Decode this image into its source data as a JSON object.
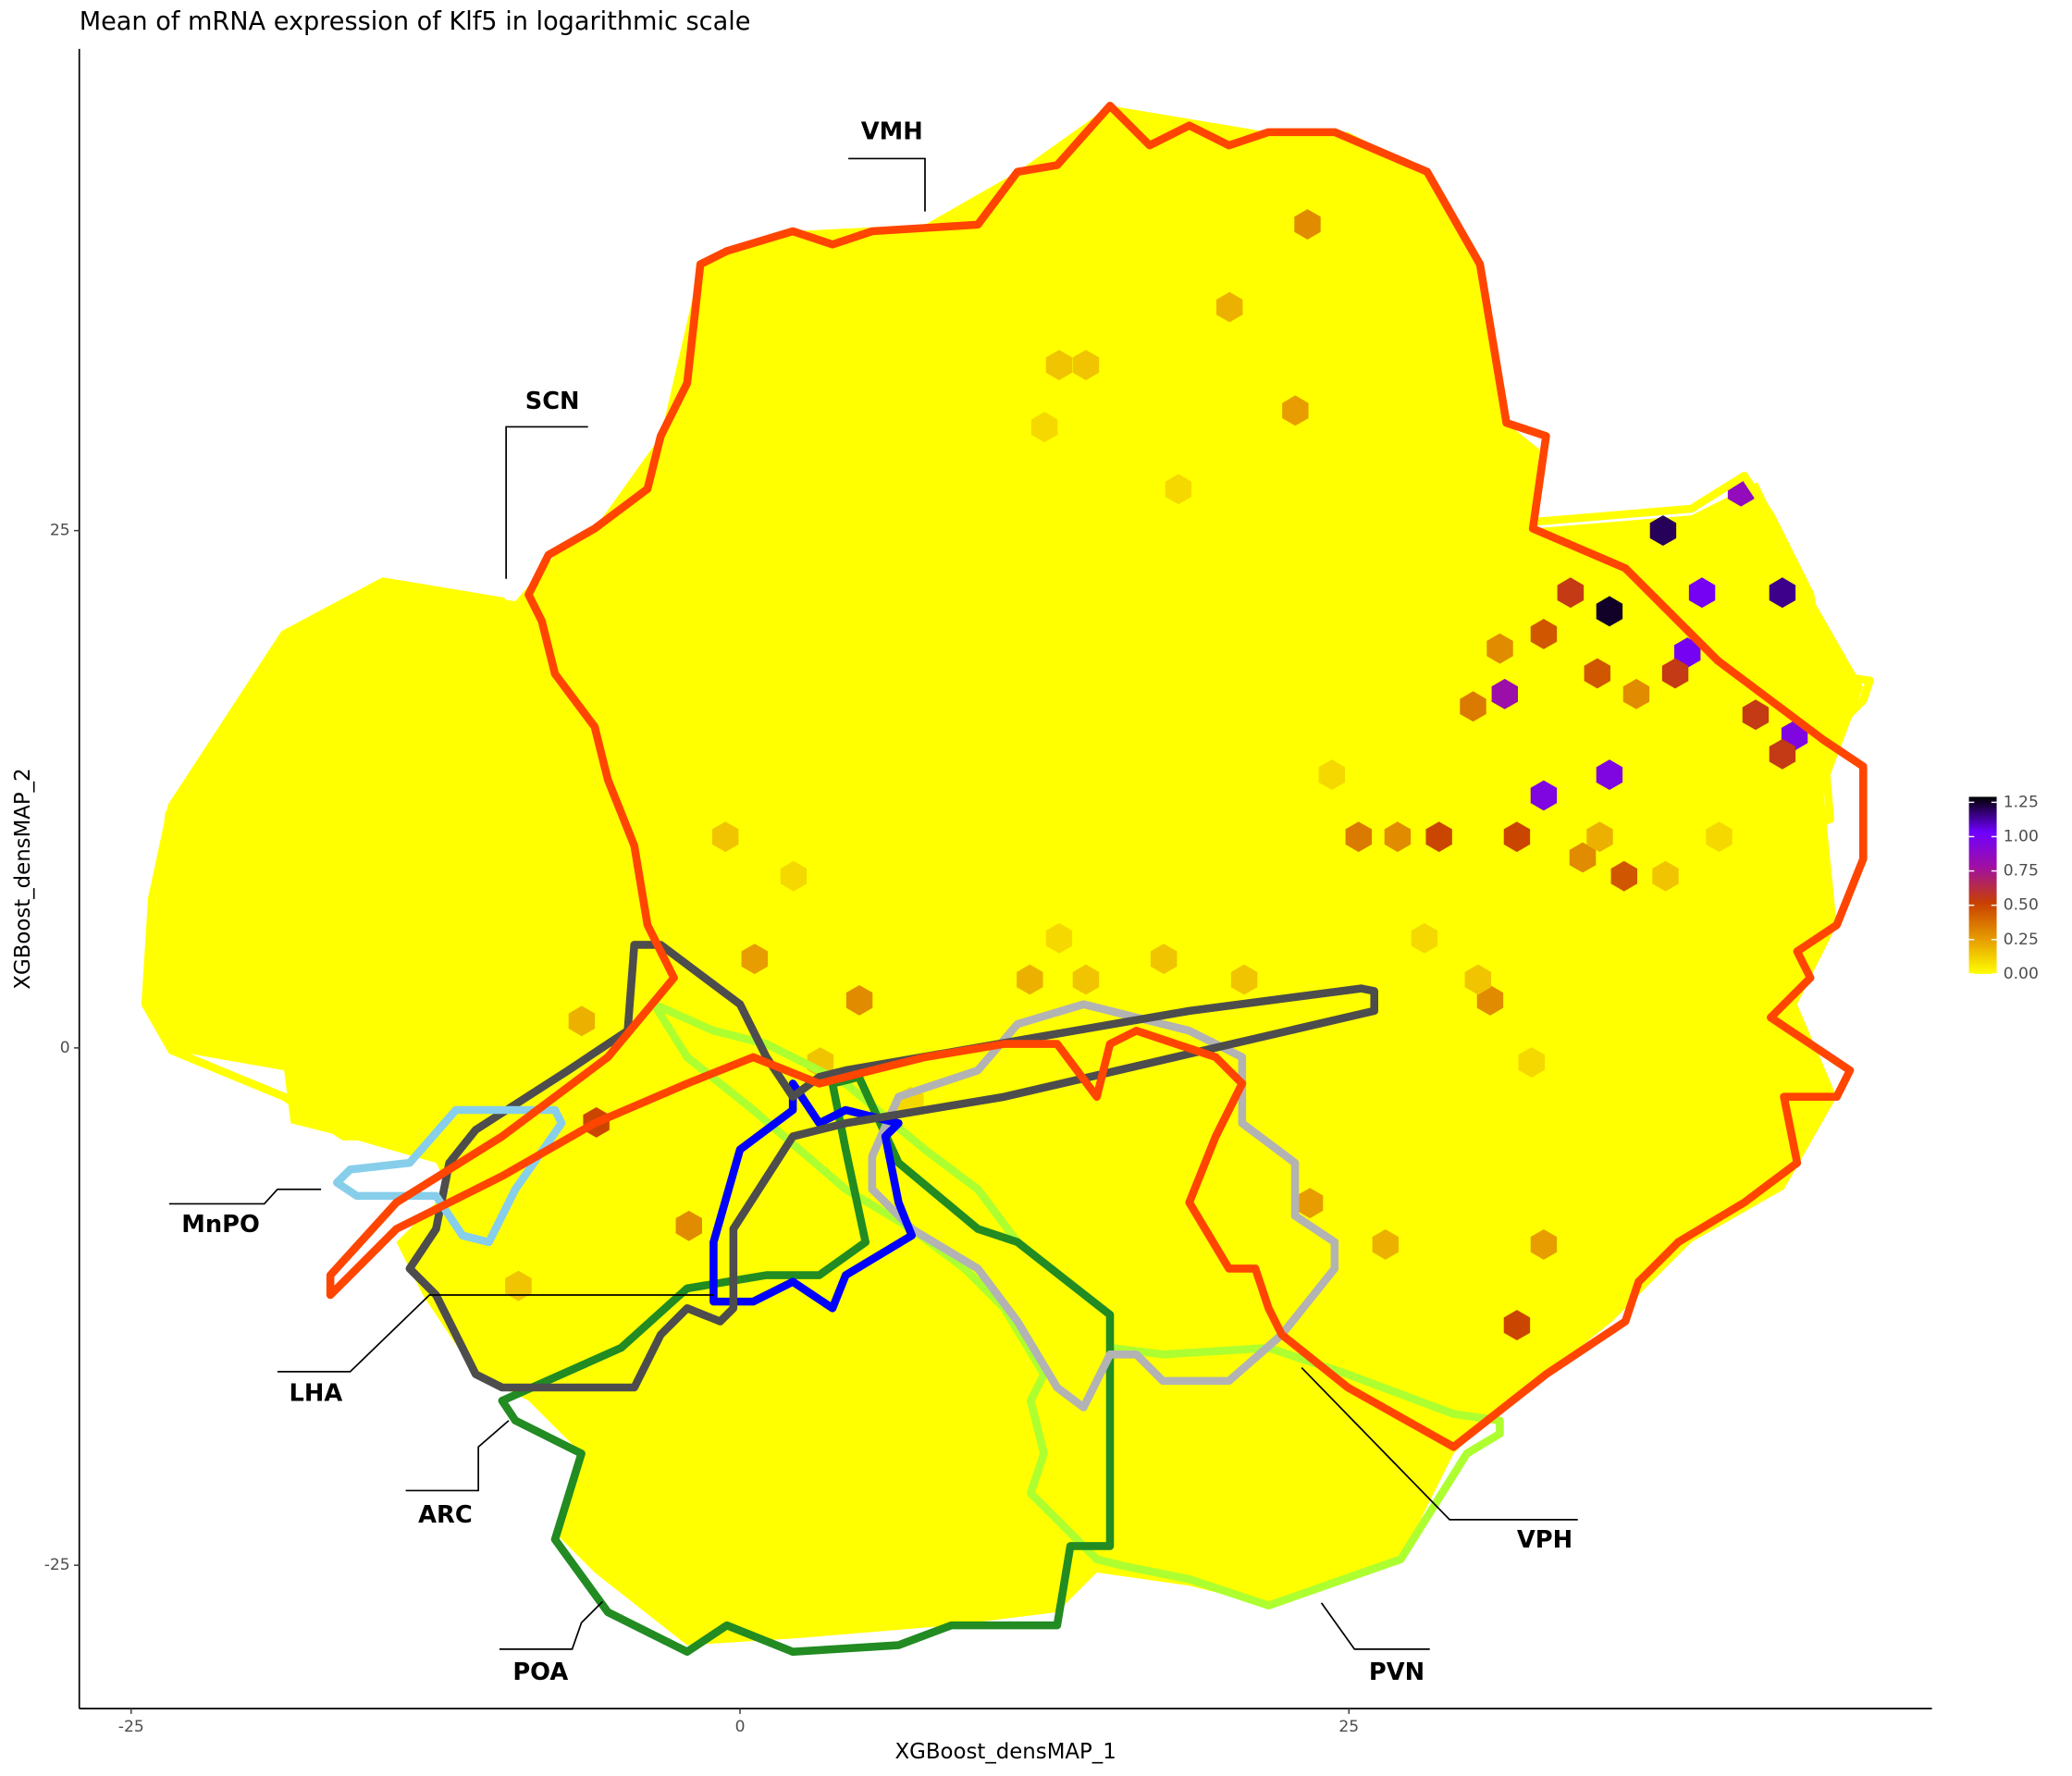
{
  "chart_data": {
    "type": "hexbin",
    "title": "Mean of mRNA expression of Klf5 in logarithmic scale",
    "x_label": "XGBoost_densMAP_1",
    "y_label": "XGBoost_densMAP_2",
    "xlim": [
      -27.13,
      48.94
    ],
    "ylim": [
      -31.93,
      48.28
    ],
    "xticks": [
      -25,
      0,
      25
    ],
    "yticks": [
      -25,
      0,
      25
    ],
    "clim": [
      0,
      1.29
    ],
    "cticks": [
      {
        "value": 0,
        "label": "0.00"
      },
      {
        "value": 0.25,
        "label": "0.25"
      },
      {
        "value": 0.5,
        "label": "0.50"
      },
      {
        "value": 0.75,
        "label": "0.75"
      },
      {
        "value": 1,
        "label": "1.00"
      },
      {
        "value": 1.25,
        "label": "1.25"
      }
    ],
    "colors": [
      "#ffff00",
      "#e69a00",
      "#c84000",
      "#a010a0",
      "#7000ff",
      "#000000"
    ],
    "regions": [
      "VMH",
      "SCN",
      "MnPO",
      "LHA",
      "ARC",
      "POA",
      "VPH",
      "PVN"
    ],
    "points": [
      {
        "x": 35.7,
        "y": 21.1,
        "value": 1.25
      },
      {
        "x": 37.9,
        "y": 25.0,
        "value": 1.2
      },
      {
        "x": 42.8,
        "y": 22.0,
        "value": 1.15
      },
      {
        "x": 41.1,
        "y": 26.9,
        "value": 0.85
      },
      {
        "x": 39.5,
        "y": 22.0,
        "value": 1.0
      },
      {
        "x": 38.9,
        "y": 19.1,
        "value": 1.0
      },
      {
        "x": 31.4,
        "y": 17.1,
        "value": 0.8
      },
      {
        "x": 33.0,
        "y": 12.2,
        "value": 0.95
      },
      {
        "x": 35.7,
        "y": 13.2,
        "value": 0.95
      },
      {
        "x": 43.3,
        "y": 15.1,
        "value": 0.95
      },
      {
        "x": 34.1,
        "y": 22.0,
        "value": 0.55
      },
      {
        "x": 41.7,
        "y": 16.1,
        "value": 0.55
      },
      {
        "x": 42.8,
        "y": 14.2,
        "value": 0.55
      },
      {
        "x": 38.4,
        "y": 18.1,
        "value": 0.55
      },
      {
        "x": 28.7,
        "y": 10.2,
        "value": 0.5
      },
      {
        "x": 31.9,
        "y": 10.2,
        "value": 0.5
      },
      {
        "x": 36.3,
        "y": 8.3,
        "value": 0.45
      },
      {
        "x": 33.0,
        "y": 20.0,
        "value": 0.45
      },
      {
        "x": 35.2,
        "y": 18.1,
        "value": 0.45
      },
      {
        "x": 31.9,
        "y": -13.4,
        "value": 0.5
      },
      {
        "x": -5.9,
        "y": -3.6,
        "value": 0.5
      },
      {
        "x": 23.3,
        "y": 39.8,
        "value": 0.3
      },
      {
        "x": 22.8,
        "y": 30.8,
        "value": 0.25
      },
      {
        "x": 20.1,
        "y": 35.8,
        "value": 0.2
      },
      {
        "x": 4.9,
        "y": 2.3,
        "value": 0.3
      },
      {
        "x": 0.6,
        "y": 4.3,
        "value": 0.25
      },
      {
        "x": -2.1,
        "y": -8.6,
        "value": 0.3
      },
      {
        "x": 25.4,
        "y": 10.2,
        "value": 0.35
      },
      {
        "x": 30.8,
        "y": 2.3,
        "value": 0.3
      },
      {
        "x": 33.0,
        "y": -9.5,
        "value": 0.25
      },
      {
        "x": 30.1,
        "y": 16.5,
        "value": 0.35
      },
      {
        "x": 31.2,
        "y": 19.3,
        "value": 0.3
      },
      {
        "x": 34.6,
        "y": 9.2,
        "value": 0.3
      },
      {
        "x": 36.8,
        "y": 17.1,
        "value": 0.3
      },
      {
        "x": 27.0,
        "y": 10.2,
        "value": 0.3
      },
      {
        "x": 23.4,
        "y": -7.5,
        "value": 0.25
      },
      {
        "x": -6.5,
        "y": 1.3,
        "value": 0.2
      },
      {
        "x": -9.1,
        "y": -11.5,
        "value": 0.15
      },
      {
        "x": 13.1,
        "y": 33.0,
        "value": 0.15
      },
      {
        "x": 14.2,
        "y": 33.0,
        "value": 0.15
      },
      {
        "x": 18.0,
        "y": 27.0,
        "value": 0.1
      },
      {
        "x": 12.5,
        "y": 30.0,
        "value": 0.1
      },
      {
        "x": -0.6,
        "y": 10.2,
        "value": 0.15
      },
      {
        "x": 2.2,
        "y": 8.3,
        "value": 0.1
      },
      {
        "x": 13.1,
        "y": 5.3,
        "value": 0.1
      },
      {
        "x": 17.4,
        "y": 4.3,
        "value": 0.15
      },
      {
        "x": 11.9,
        "y": 3.3,
        "value": 0.2
      },
      {
        "x": 14.2,
        "y": 3.3,
        "value": 0.15
      },
      {
        "x": 20.7,
        "y": 3.3,
        "value": 0.15
      },
      {
        "x": 24.3,
        "y": 13.2,
        "value": 0.1
      },
      {
        "x": 28.1,
        "y": 5.3,
        "value": 0.1
      },
      {
        "x": 30.3,
        "y": 3.3,
        "value": 0.15
      },
      {
        "x": 32.5,
        "y": -0.7,
        "value": 0.1
      },
      {
        "x": 26.5,
        "y": -9.5,
        "value": 0.2
      },
      {
        "x": 35.3,
        "y": 10.2,
        "value": 0.2
      },
      {
        "x": 38.0,
        "y": 8.3,
        "value": 0.15
      },
      {
        "x": 40.2,
        "y": 10.2,
        "value": 0.1
      },
      {
        "x": 3.3,
        "y": -0.7,
        "value": 0.15
      },
      {
        "x": 7.0,
        "y": -2.6,
        "value": 0.1
      }
    ]
  }
}
